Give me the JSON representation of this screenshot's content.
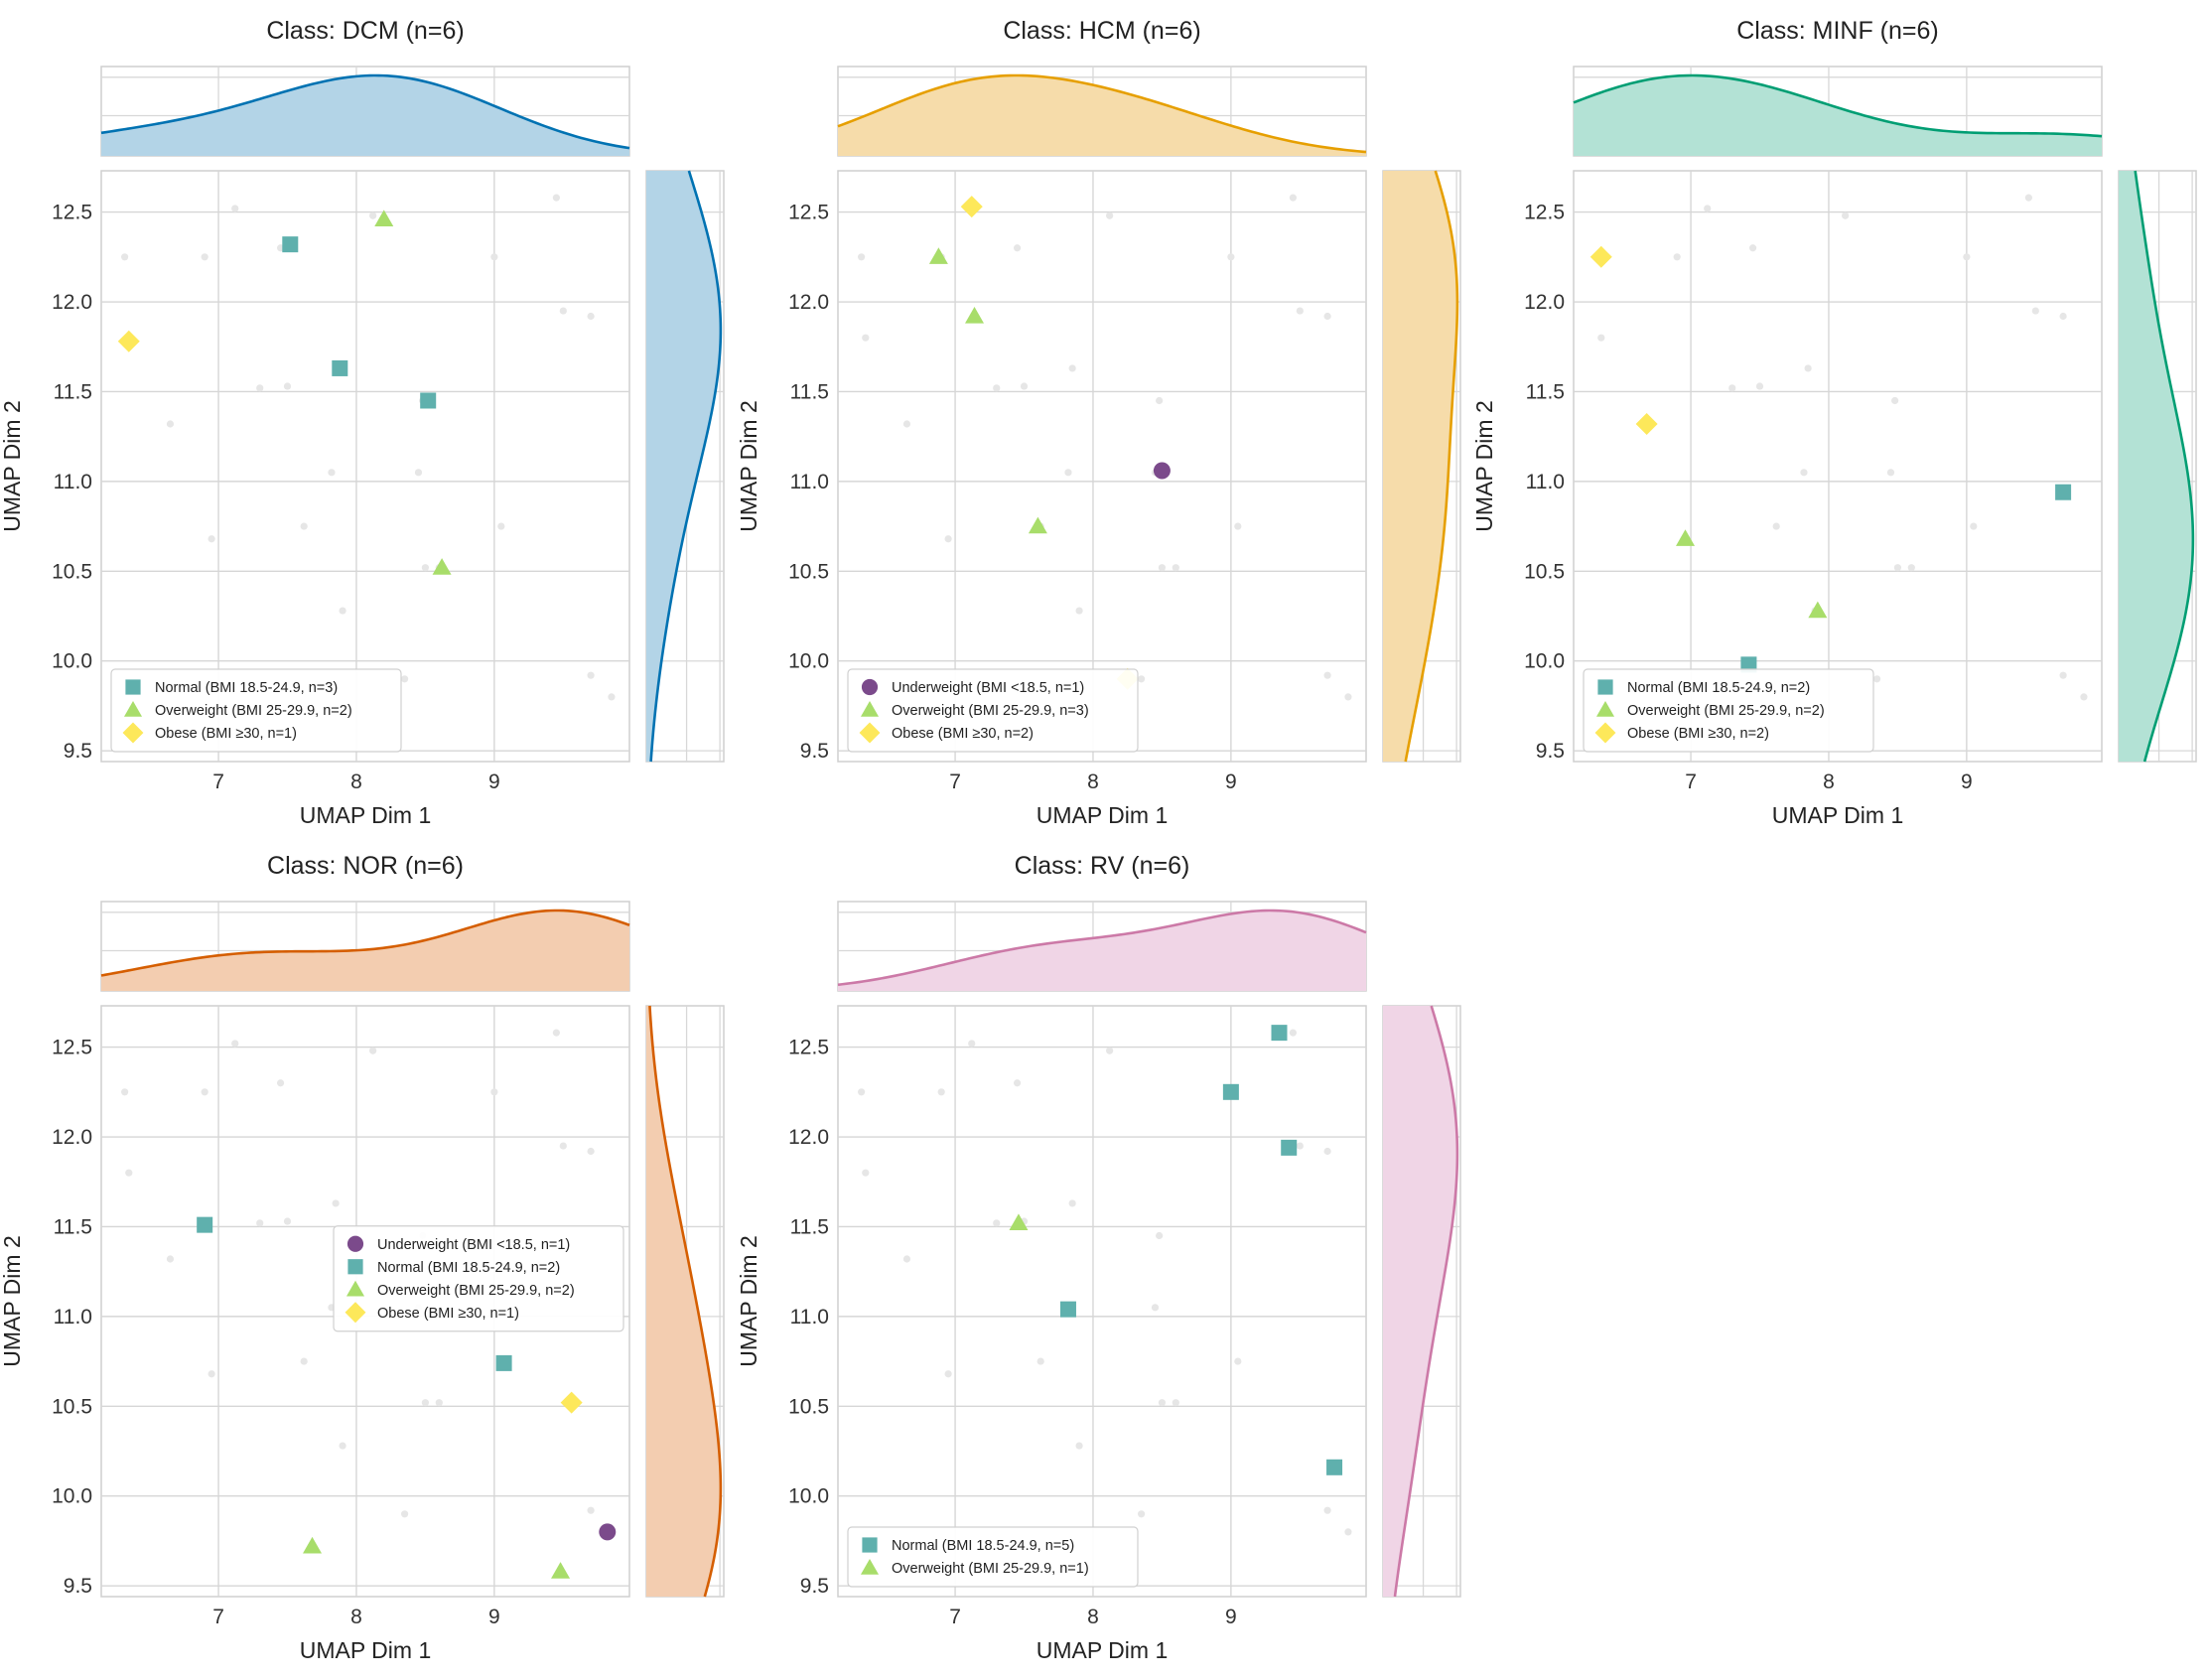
{
  "figure": {
    "axis_xlabel": "UMAP Dim 1",
    "axis_ylabel": "UMAP Dim 2",
    "xlim": [
      6.15,
      9.98
    ],
    "ylim": [
      9.44,
      12.73
    ],
    "xticks": [
      "7",
      "8",
      "9"
    ],
    "yticks": [
      "9.5",
      "10.0",
      "10.5",
      "11.0",
      "11.5",
      "12.0",
      "12.5"
    ],
    "category_style": {
      "Underweight": {
        "marker": "circle",
        "color": "#7b4a8b"
      },
      "Normal": {
        "marker": "square",
        "color": "#5fb0ad"
      },
      "Overweight": {
        "marker": "triangle",
        "color": "#a8dd6a"
      },
      "Obese": {
        "marker": "diamond",
        "color": "#fde85a"
      }
    }
  },
  "background_points": {
    "x": [
      6.32,
      6.9,
      7.12,
      7.45,
      7.5,
      7.82,
      8.12,
      8.45,
      8.48,
      9.0,
      9.45,
      9.5,
      6.35,
      6.95,
      7.3,
      7.62,
      7.9,
      8.35,
      8.6,
      9.05,
      9.7,
      9.85,
      6.65,
      7.85,
      8.5,
      9.7
    ],
    "y": [
      12.25,
      12.25,
      12.52,
      12.3,
      11.53,
      11.05,
      12.48,
      11.05,
      11.45,
      12.25,
      12.58,
      11.95,
      11.8,
      10.68,
      11.52,
      10.75,
      10.28,
      9.9,
      10.52,
      10.75,
      9.92,
      9.8,
      11.32,
      11.63,
      10.52,
      11.92
    ]
  },
  "chart_data": [
    {
      "type": "scatter",
      "title": "Class: DCM (n=6)",
      "kde_color": "#0072b2",
      "kde_fill": "#b3d4e7",
      "series": [
        {
          "name": "Normal (BMI 18.5-24.9, n=3)",
          "category": "Normal",
          "x": [
            7.52,
            7.88,
            8.52
          ],
          "y": [
            12.32,
            11.63,
            11.45
          ]
        },
        {
          "name": "Overweight (BMI 25-29.9, n=2)",
          "category": "Overweight",
          "x": [
            8.2,
            8.62
          ],
          "y": [
            12.46,
            10.52
          ]
        },
        {
          "name": "Obese (BMI ≥30, n=1)",
          "category": "Obese",
          "x": [
            6.35
          ],
          "y": [
            11.78
          ]
        }
      ],
      "xlabel": "UMAP Dim 1",
      "ylabel": "UMAP Dim 2",
      "legend": "lower-left"
    },
    {
      "type": "scatter",
      "title": "Class: HCM (n=6)",
      "kde_color": "#e69f00",
      "kde_fill": "#f6dcaa",
      "series": [
        {
          "name": "Underweight (BMI <18.5, n=1)",
          "category": "Underweight",
          "x": [
            8.5
          ],
          "y": [
            11.06
          ]
        },
        {
          "name": "Overweight (BMI 25-29.9, n=3)",
          "category": "Overweight",
          "x": [
            6.88,
            7.14,
            7.6
          ],
          "y": [
            12.25,
            11.92,
            10.75
          ]
        },
        {
          "name": "Obese (BMI ≥30, n=2)",
          "category": "Obese",
          "x": [
            7.12,
            8.25
          ],
          "y": [
            12.53,
            9.9
          ]
        }
      ],
      "xlabel": "UMAP Dim 1",
      "ylabel": "UMAP Dim 2",
      "legend": "lower-left"
    },
    {
      "type": "scatter",
      "title": "Class: MINF (n=6)",
      "kde_color": "#009e73",
      "kde_fill": "#b3e2d5",
      "series": [
        {
          "name": "Normal (BMI 18.5-24.9, n=2)",
          "category": "Normal",
          "x": [
            7.42,
            9.7
          ],
          "y": [
            9.98,
            10.94
          ]
        },
        {
          "name": "Overweight (BMI 25-29.9, n=2)",
          "category": "Overweight",
          "x": [
            6.96,
            7.92
          ],
          "y": [
            10.68,
            10.28
          ]
        },
        {
          "name": "Obese (BMI ≥30, n=2)",
          "category": "Obese",
          "x": [
            6.35,
            6.68
          ],
          "y": [
            12.25,
            11.32
          ]
        }
      ],
      "xlabel": "UMAP Dim 1",
      "ylabel": "UMAP Dim 2",
      "legend": "lower-left"
    },
    {
      "type": "scatter",
      "title": "Class: NOR (n=6)",
      "kde_color": "#d55e00",
      "kde_fill": "#f3cdb0",
      "series": [
        {
          "name": "Underweight (BMI <18.5, n=1)",
          "category": "Underweight",
          "x": [
            9.82
          ],
          "y": [
            9.8
          ]
        },
        {
          "name": "Normal (BMI 18.5-24.9, n=2)",
          "category": "Normal",
          "x": [
            6.9,
            9.07
          ],
          "y": [
            11.51,
            10.74
          ]
        },
        {
          "name": "Overweight (BMI 25-29.9, n=2)",
          "category": "Overweight",
          "x": [
            7.68,
            9.48
          ],
          "y": [
            9.72,
            9.58
          ]
        },
        {
          "name": "Obese (BMI ≥30, n=1)",
          "category": "Obese",
          "x": [
            9.56
          ],
          "y": [
            10.52
          ]
        }
      ],
      "xlabel": "UMAP Dim 1",
      "ylabel": "UMAP Dim 2",
      "legend": "center-right"
    },
    {
      "type": "scatter",
      "title": "Class: RV (n=6)",
      "kde_color": "#cc79a7",
      "kde_fill": "#f0d5e6",
      "series": [
        {
          "name": "Normal (BMI 18.5-24.9, n=5)",
          "category": "Normal",
          "x": [
            7.82,
            9.0,
            9.35,
            9.42,
            9.75
          ],
          "y": [
            11.04,
            12.25,
            12.58,
            11.94,
            10.16
          ]
        },
        {
          "name": "Overweight (BMI 25-29.9, n=1)",
          "category": "Overweight",
          "x": [
            7.46
          ],
          "y": [
            11.52
          ]
        }
      ],
      "xlabel": "UMAP Dim 1",
      "ylabel": "UMAP Dim 2",
      "legend": "lower-left"
    }
  ]
}
